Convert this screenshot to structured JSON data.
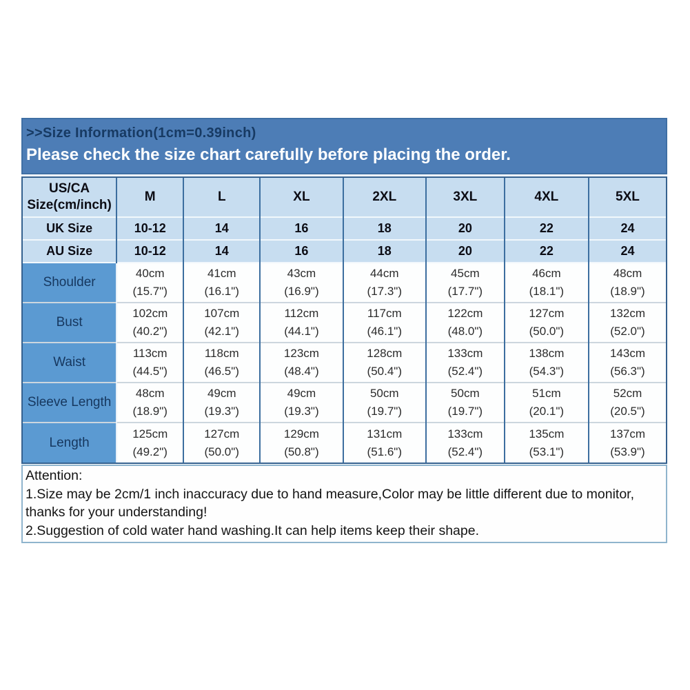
{
  "banner": {
    "line1": ">>Size Information(1cm=0.39inch)",
    "line2": "Please check the size chart carefully before placing the order."
  },
  "table": {
    "corner_header": {
      "line1": "US/CA",
      "line2": "Size(cm/inch)"
    },
    "size_columns": [
      "M",
      "L",
      "XL",
      "2XL",
      "3XL",
      "4XL",
      "5XL"
    ],
    "uk_row": {
      "label": "UK Size",
      "values": [
        "10-12",
        "14",
        "16",
        "18",
        "20",
        "22",
        "24"
      ]
    },
    "au_row": {
      "label": "AU Size",
      "values": [
        "10-12",
        "14",
        "16",
        "18",
        "20",
        "22",
        "24"
      ]
    },
    "measurement_rows": [
      {
        "label": "Shoulder",
        "values": [
          {
            "cm": "40cm",
            "in": "(15.7\")"
          },
          {
            "cm": "41cm",
            "in": "(16.1\")"
          },
          {
            "cm": "43cm",
            "in": "(16.9\")"
          },
          {
            "cm": "44cm",
            "in": "(17.3\")"
          },
          {
            "cm": "45cm",
            "in": "(17.7\")"
          },
          {
            "cm": "46cm",
            "in": "(18.1\")"
          },
          {
            "cm": "48cm",
            "in": "(18.9\")"
          }
        ]
      },
      {
        "label": "Bust",
        "values": [
          {
            "cm": "102cm",
            "in": "(40.2\")"
          },
          {
            "cm": "107cm",
            "in": "(42.1\")"
          },
          {
            "cm": "112cm",
            "in": "(44.1\")"
          },
          {
            "cm": "117cm",
            "in": "(46.1\")"
          },
          {
            "cm": "122cm",
            "in": "(48.0\")"
          },
          {
            "cm": "127cm",
            "in": "(50.0\")"
          },
          {
            "cm": "132cm",
            "in": "(52.0\")"
          }
        ]
      },
      {
        "label": "Waist",
        "values": [
          {
            "cm": "113cm",
            "in": "(44.5\")"
          },
          {
            "cm": "118cm",
            "in": "(46.5\")"
          },
          {
            "cm": "123cm",
            "in": "(48.4\")"
          },
          {
            "cm": "128cm",
            "in": "(50.4\")"
          },
          {
            "cm": "133cm",
            "in": "(52.4\")"
          },
          {
            "cm": "138cm",
            "in": "(54.3\")"
          },
          {
            "cm": "143cm",
            "in": "(56.3\")"
          }
        ]
      },
      {
        "label": "Sleeve Length",
        "values": [
          {
            "cm": "48cm",
            "in": "(18.9\")"
          },
          {
            "cm": "49cm",
            "in": "(19.3\")"
          },
          {
            "cm": "49cm",
            "in": "(19.3\")"
          },
          {
            "cm": "50cm",
            "in": "(19.7\")"
          },
          {
            "cm": "50cm",
            "in": "(19.7\")"
          },
          {
            "cm": "51cm",
            "in": "(20.1\")"
          },
          {
            "cm": "52cm",
            "in": "(20.5\")"
          }
        ]
      },
      {
        "label": "Length",
        "values": [
          {
            "cm": "125cm",
            "in": "(49.2\")"
          },
          {
            "cm": "127cm",
            "in": "(50.0\")"
          },
          {
            "cm": "129cm",
            "in": "(50.8\")"
          },
          {
            "cm": "131cm",
            "in": "(51.6\")"
          },
          {
            "cm": "133cm",
            "in": "(52.4\")"
          },
          {
            "cm": "135cm",
            "in": "(53.1\")"
          },
          {
            "cm": "137cm",
            "in": "(53.9\")"
          }
        ]
      }
    ]
  },
  "attention": {
    "lines": [
      "Attention:",
      "1.Size may be 2cm/1 inch inaccuracy due to hand measure,Color may be little different due to monitor,",
      "thanks for your understanding!",
      "2.Suggestion of cold water hand washing.It can help items keep their shape."
    ]
  },
  "colors": {
    "banner_bg": "#4d7db6",
    "banner_border": "#3f6fa4",
    "banner_title_color": "#173a63",
    "light_blue": "#c7ddf0",
    "label_blue": "#5b9ad2",
    "label_text": "#16375e",
    "grid_dark": "#3c6e9f",
    "grid_outer": "#35618f",
    "attention_border": "#8fb4cd"
  }
}
